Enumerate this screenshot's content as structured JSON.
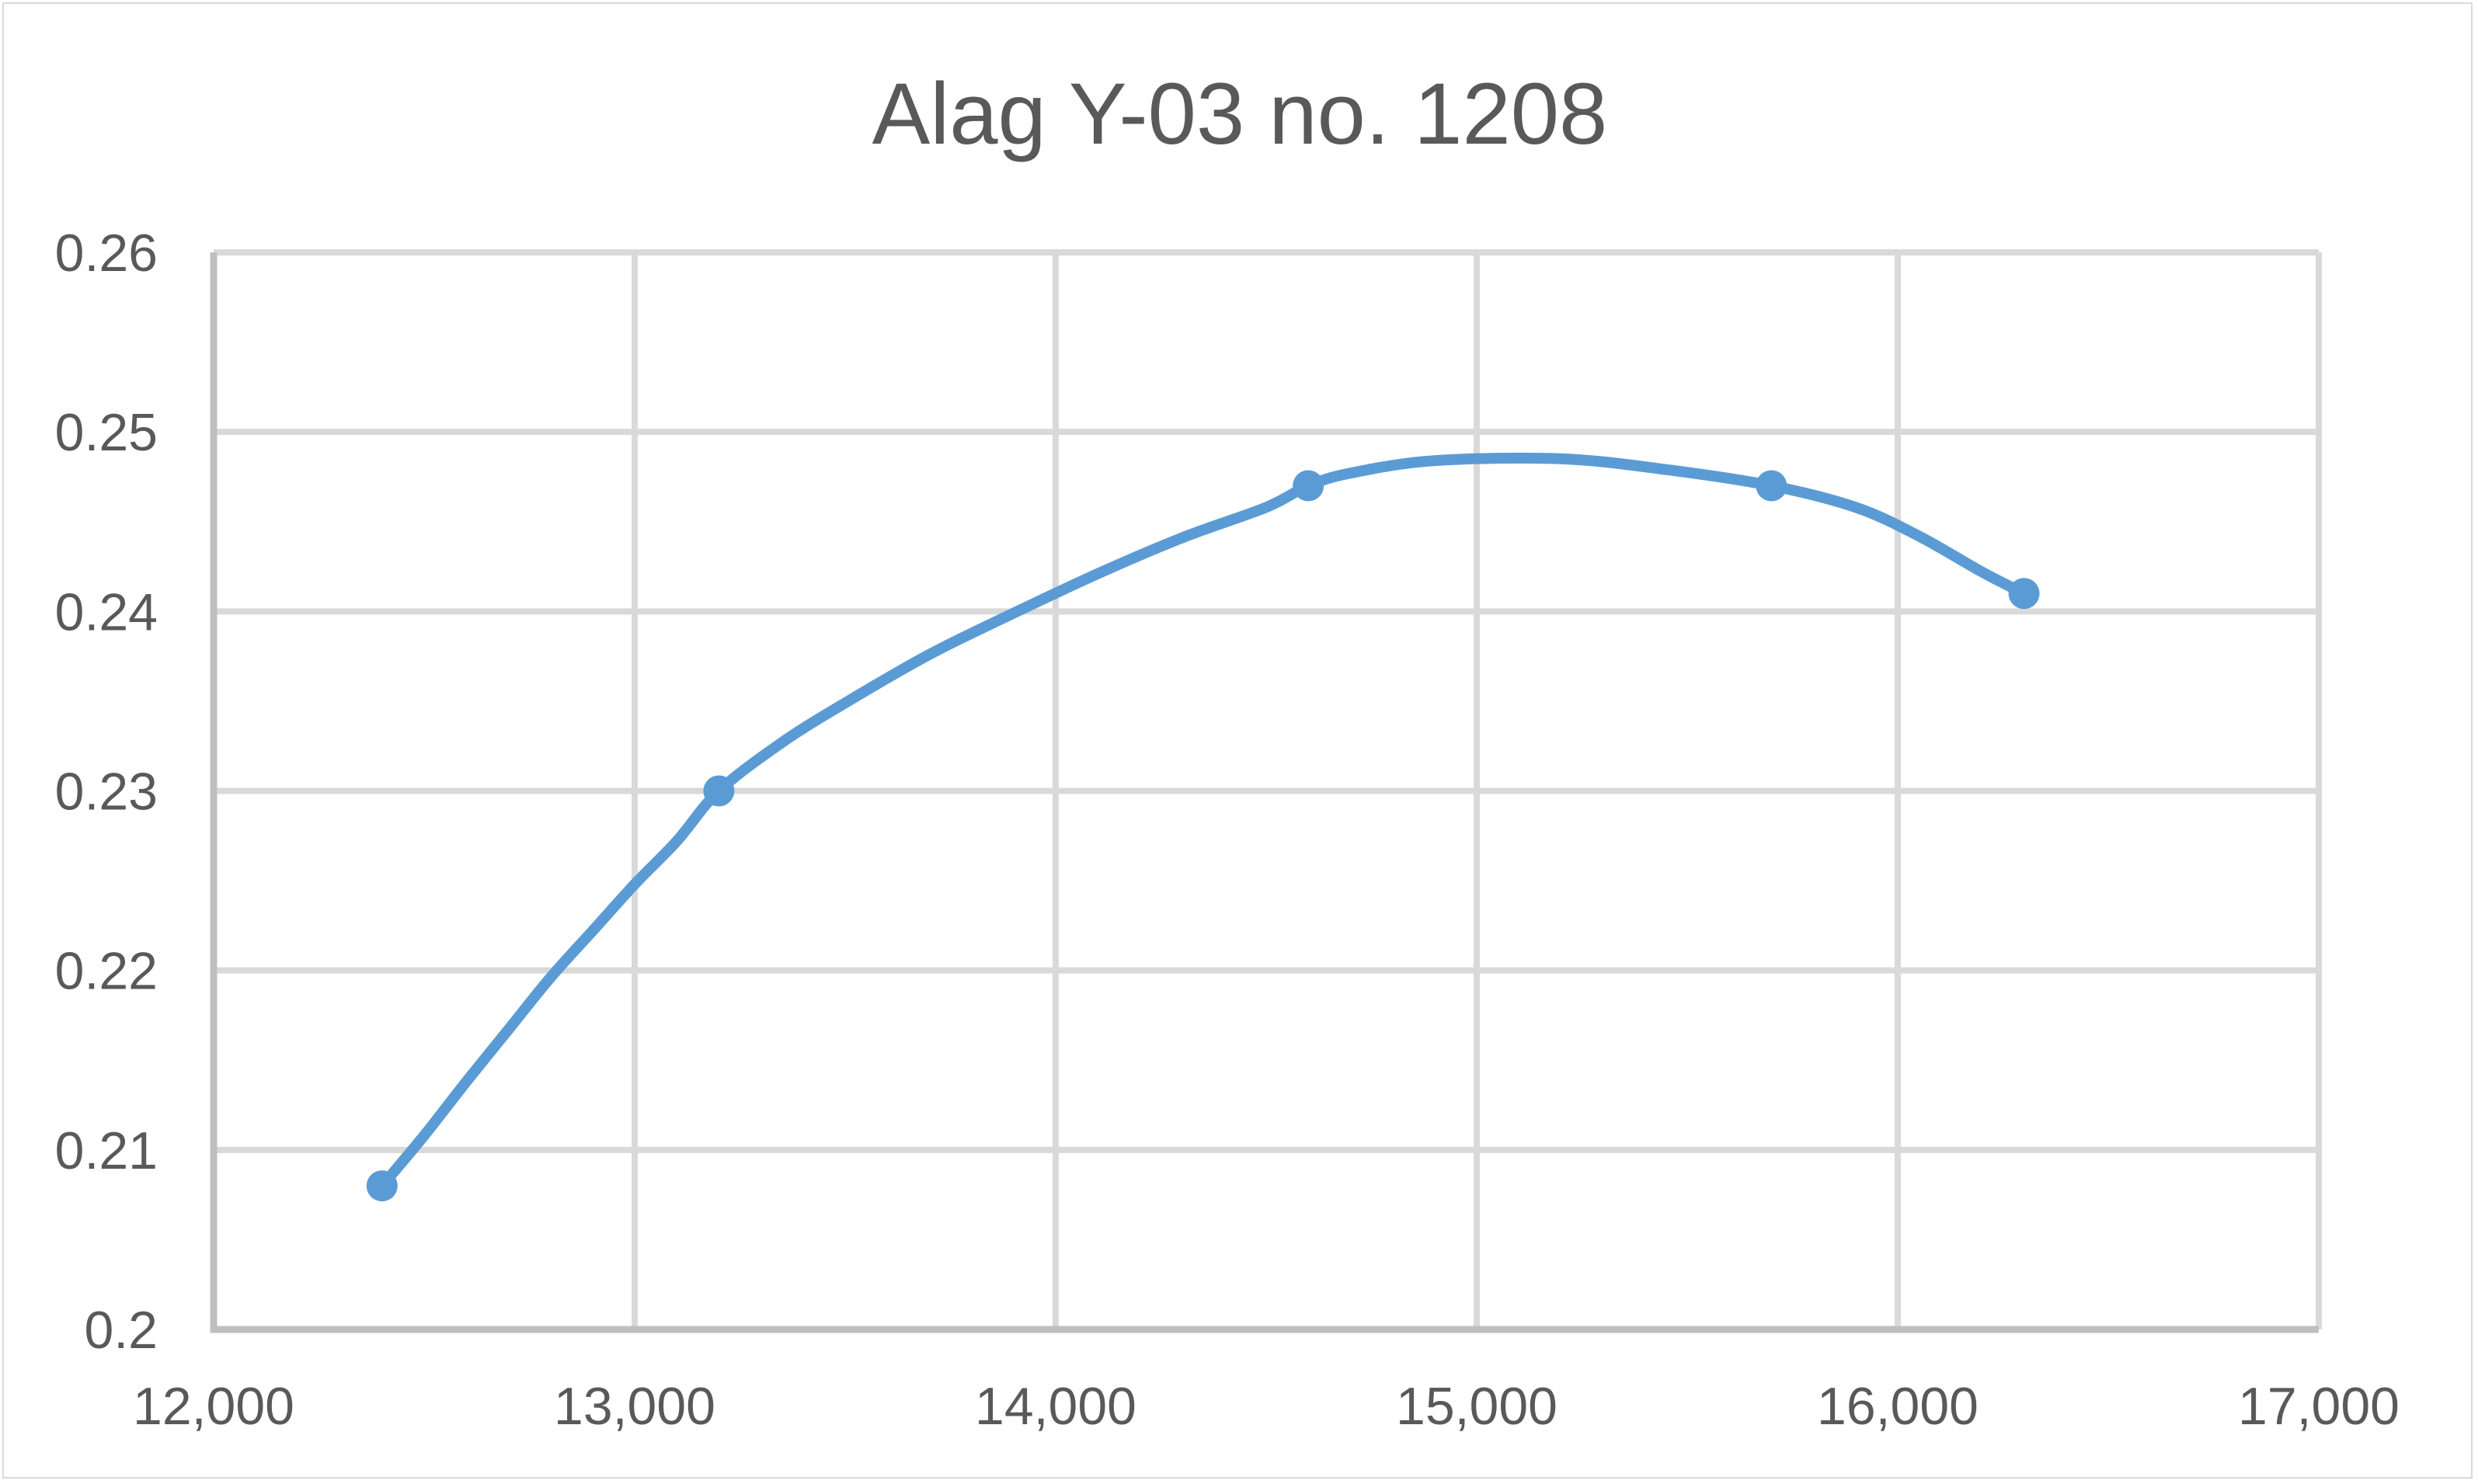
{
  "chart_data": {
    "type": "line",
    "title": "Alag Y-03 no. 1208",
    "xlabel": "",
    "ylabel": "",
    "xlim": [
      12000,
      17000
    ],
    "ylim": [
      0.2,
      0.26
    ],
    "x_ticks": [
      12000,
      13000,
      14000,
      15000,
      16000,
      17000
    ],
    "x_tick_labels": [
      "12,000",
      "13,000",
      "14,000",
      "15,000",
      "16,000",
      "17,000"
    ],
    "y_ticks": [
      0.2,
      0.21,
      0.22,
      0.23,
      0.24,
      0.25,
      0.26
    ],
    "y_tick_labels": [
      "0.2",
      "0.21",
      "0.22",
      "0.23",
      "0.24",
      "0.25",
      "0.26"
    ],
    "grid": true,
    "legend": "none",
    "series": [
      {
        "color": "#5b9bd5",
        "smooth": true,
        "points": [
          {
            "x": 12400,
            "y": 0.208
          },
          {
            "x": 13200,
            "y": 0.23
          },
          {
            "x": 14600,
            "y": 0.247
          },
          {
            "x": 15700,
            "y": 0.247
          },
          {
            "x": 16300,
            "y": 0.241
          }
        ],
        "curve": [
          {
            "x": 12400,
            "y": 0.208
          },
          {
            "x": 12500,
            "y": 0.2108
          },
          {
            "x": 12600,
            "y": 0.2138
          },
          {
            "x": 12700,
            "y": 0.2167
          },
          {
            "x": 12800,
            "y": 0.2196
          },
          {
            "x": 12900,
            "y": 0.2222
          },
          {
            "x": 13000,
            "y": 0.2248
          },
          {
            "x": 13100,
            "y": 0.2272
          },
          {
            "x": 13200,
            "y": 0.23
          },
          {
            "x": 13350,
            "y": 0.2327
          },
          {
            "x": 13500,
            "y": 0.2349
          },
          {
            "x": 13700,
            "y": 0.2376
          },
          {
            "x": 13900,
            "y": 0.2399
          },
          {
            "x": 14100,
            "y": 0.2421
          },
          {
            "x": 14300,
            "y": 0.2441
          },
          {
            "x": 14500,
            "y": 0.2458
          },
          {
            "x": 14600,
            "y": 0.247
          },
          {
            "x": 14700,
            "y": 0.2477
          },
          {
            "x": 14900,
            "y": 0.2484
          },
          {
            "x": 15200,
            "y": 0.2485
          },
          {
            "x": 15450,
            "y": 0.2479
          },
          {
            "x": 15700,
            "y": 0.247
          },
          {
            "x": 15900,
            "y": 0.2458
          },
          {
            "x": 16050,
            "y": 0.2442
          },
          {
            "x": 16200,
            "y": 0.2422
          },
          {
            "x": 16300,
            "y": 0.241
          }
        ]
      }
    ]
  },
  "colors": {
    "series": "#5b9bd5",
    "grid": "#d9d9d9",
    "axis": "#bfbfbf",
    "text": "#595959",
    "border": "#d9d9d9"
  }
}
